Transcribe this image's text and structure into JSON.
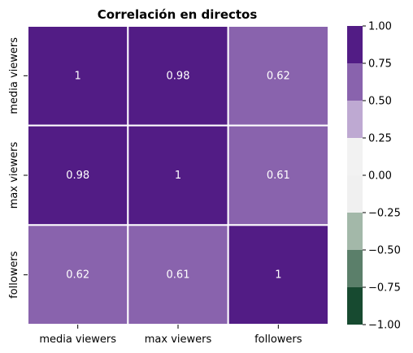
{
  "chart_data": {
    "type": "heatmap",
    "title": "Correlación en directos",
    "x_labels": [
      "media viewers",
      "max viewers",
      "followers"
    ],
    "y_labels": [
      "media viewers",
      "max viewers",
      "followers"
    ],
    "values": [
      [
        1,
        0.98,
        0.62
      ],
      [
        0.98,
        1,
        0.61
      ],
      [
        0.62,
        0.61,
        1
      ]
    ],
    "annotations": [
      [
        "1",
        "0.98",
        "0.62"
      ],
      [
        "0.98",
        "1",
        "0.61"
      ],
      [
        "0.62",
        "0.61",
        "1"
      ]
    ],
    "colorbar": {
      "range": [
        -1.0,
        1.0
      ],
      "ticks": [
        "1.00",
        "0.75",
        "0.50",
        "0.25",
        "0.00",
        "−0.25",
        "−0.50",
        "−0.75",
        "−1.00"
      ],
      "tick_values": [
        1.0,
        0.75,
        0.5,
        0.25,
        0.0,
        -0.25,
        -0.5,
        -0.75,
        -1.0
      ],
      "bands": [
        {
          "from": 0.75,
          "to": 1.0,
          "color": "#521c85"
        },
        {
          "from": 0.5,
          "to": 0.75,
          "color": "#8963ad"
        },
        {
          "from": 0.25,
          "to": 0.5,
          "color": "#bea9d2"
        },
        {
          "from": 0.0,
          "to": 0.25,
          "color": "#f2f2f2"
        },
        {
          "from": -0.25,
          "to": 0.0,
          "color": "#f0f0f0"
        },
        {
          "from": -0.5,
          "to": -0.25,
          "color": "#a3b8a9"
        },
        {
          "from": -0.75,
          "to": -0.5,
          "color": "#5b7f6a"
        },
        {
          "from": -1.0,
          "to": -0.75,
          "color": "#174a30"
        }
      ]
    },
    "annotation_color": "#ffffff",
    "cell_separator_color": "#ffffff",
    "grid": false
  }
}
